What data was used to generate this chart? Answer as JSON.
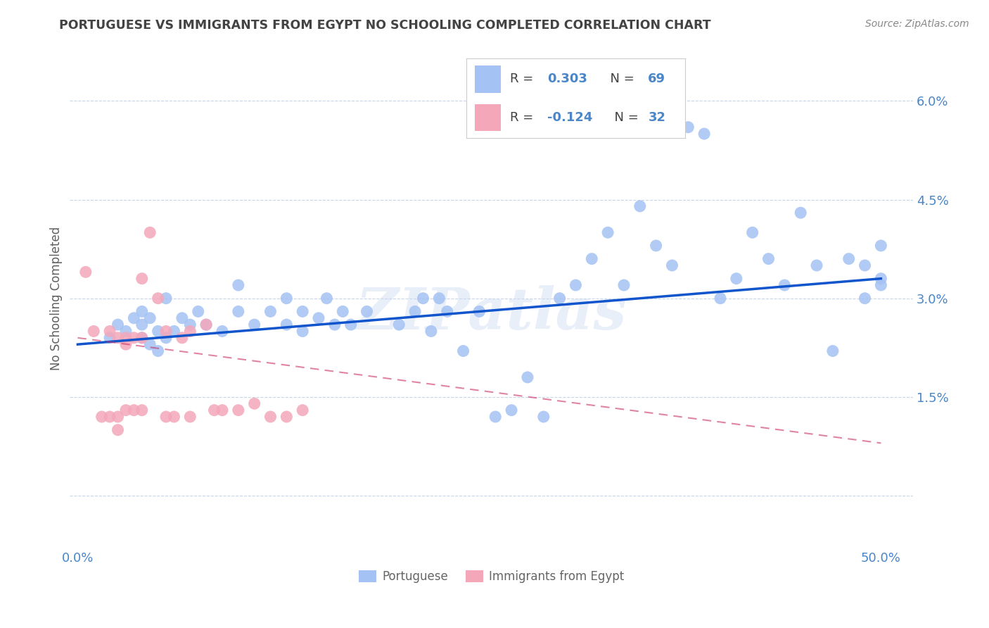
{
  "title": "PORTUGUESE VS IMMIGRANTS FROM EGYPT NO SCHOOLING COMPLETED CORRELATION CHART",
  "source": "Source: ZipAtlas.com",
  "ylabel": "No Schooling Completed",
  "yticks": [
    0.0,
    0.015,
    0.03,
    0.045,
    0.06
  ],
  "ytick_labels": [
    "",
    "1.5%",
    "3.0%",
    "4.5%",
    "6.0%"
  ],
  "xticks": [
    0.0,
    0.5
  ],
  "xtick_labels": [
    "0.0%",
    "50.0%"
  ],
  "xlim": [
    -0.005,
    0.52
  ],
  "ylim": [
    -0.008,
    0.068
  ],
  "blue_color": "#a4c2f4",
  "pink_color": "#f4a7b9",
  "line_blue": "#1155cc",
  "line_pink": "#cc3366",
  "title_color": "#434343",
  "axis_tick_color": "#4a86c8",
  "watermark": "ZIPatlas",
  "legend_text_color": "#434343",
  "legend_value_color": "#4a86c8",
  "blue_x": [
    0.02,
    0.025,
    0.03,
    0.035,
    0.04,
    0.04,
    0.04,
    0.045,
    0.045,
    0.05,
    0.05,
    0.055,
    0.055,
    0.06,
    0.065,
    0.07,
    0.075,
    0.08,
    0.09,
    0.1,
    0.1,
    0.11,
    0.12,
    0.13,
    0.13,
    0.14,
    0.14,
    0.15,
    0.155,
    0.16,
    0.165,
    0.17,
    0.18,
    0.2,
    0.21,
    0.215,
    0.22,
    0.225,
    0.23,
    0.24,
    0.25,
    0.26,
    0.27,
    0.28,
    0.29,
    0.3,
    0.31,
    0.32,
    0.33,
    0.34,
    0.35,
    0.36,
    0.37,
    0.38,
    0.39,
    0.4,
    0.41,
    0.42,
    0.43,
    0.44,
    0.45,
    0.46,
    0.47,
    0.48,
    0.49,
    0.49,
    0.5,
    0.5,
    0.5
  ],
  "blue_y": [
    0.024,
    0.026,
    0.025,
    0.027,
    0.024,
    0.026,
    0.028,
    0.023,
    0.027,
    0.022,
    0.025,
    0.024,
    0.03,
    0.025,
    0.027,
    0.026,
    0.028,
    0.026,
    0.025,
    0.028,
    0.032,
    0.026,
    0.028,
    0.026,
    0.03,
    0.025,
    0.028,
    0.027,
    0.03,
    0.026,
    0.028,
    0.026,
    0.028,
    0.026,
    0.028,
    0.03,
    0.025,
    0.03,
    0.028,
    0.022,
    0.028,
    0.012,
    0.013,
    0.018,
    0.012,
    0.03,
    0.032,
    0.036,
    0.04,
    0.032,
    0.044,
    0.038,
    0.035,
    0.056,
    0.055,
    0.03,
    0.033,
    0.04,
    0.036,
    0.032,
    0.043,
    0.035,
    0.022,
    0.036,
    0.03,
    0.035,
    0.033,
    0.032,
    0.038
  ],
  "pink_x": [
    0.005,
    0.01,
    0.015,
    0.02,
    0.02,
    0.025,
    0.025,
    0.025,
    0.03,
    0.03,
    0.03,
    0.035,
    0.035,
    0.04,
    0.04,
    0.04,
    0.045,
    0.05,
    0.055,
    0.055,
    0.06,
    0.065,
    0.07,
    0.07,
    0.08,
    0.085,
    0.09,
    0.1,
    0.11,
    0.12,
    0.13,
    0.14
  ],
  "pink_y": [
    0.034,
    0.025,
    0.012,
    0.025,
    0.012,
    0.024,
    0.012,
    0.01,
    0.024,
    0.023,
    0.013,
    0.024,
    0.013,
    0.033,
    0.024,
    0.013,
    0.04,
    0.03,
    0.025,
    0.012,
    0.012,
    0.024,
    0.025,
    0.012,
    0.026,
    0.013,
    0.013,
    0.013,
    0.014,
    0.012,
    0.012,
    0.013
  ],
  "blue_line_x": [
    0.0,
    0.5
  ],
  "blue_line_y": [
    0.023,
    0.033
  ],
  "pink_line_x": [
    0.0,
    0.5
  ],
  "pink_line_y": [
    0.024,
    0.008
  ]
}
